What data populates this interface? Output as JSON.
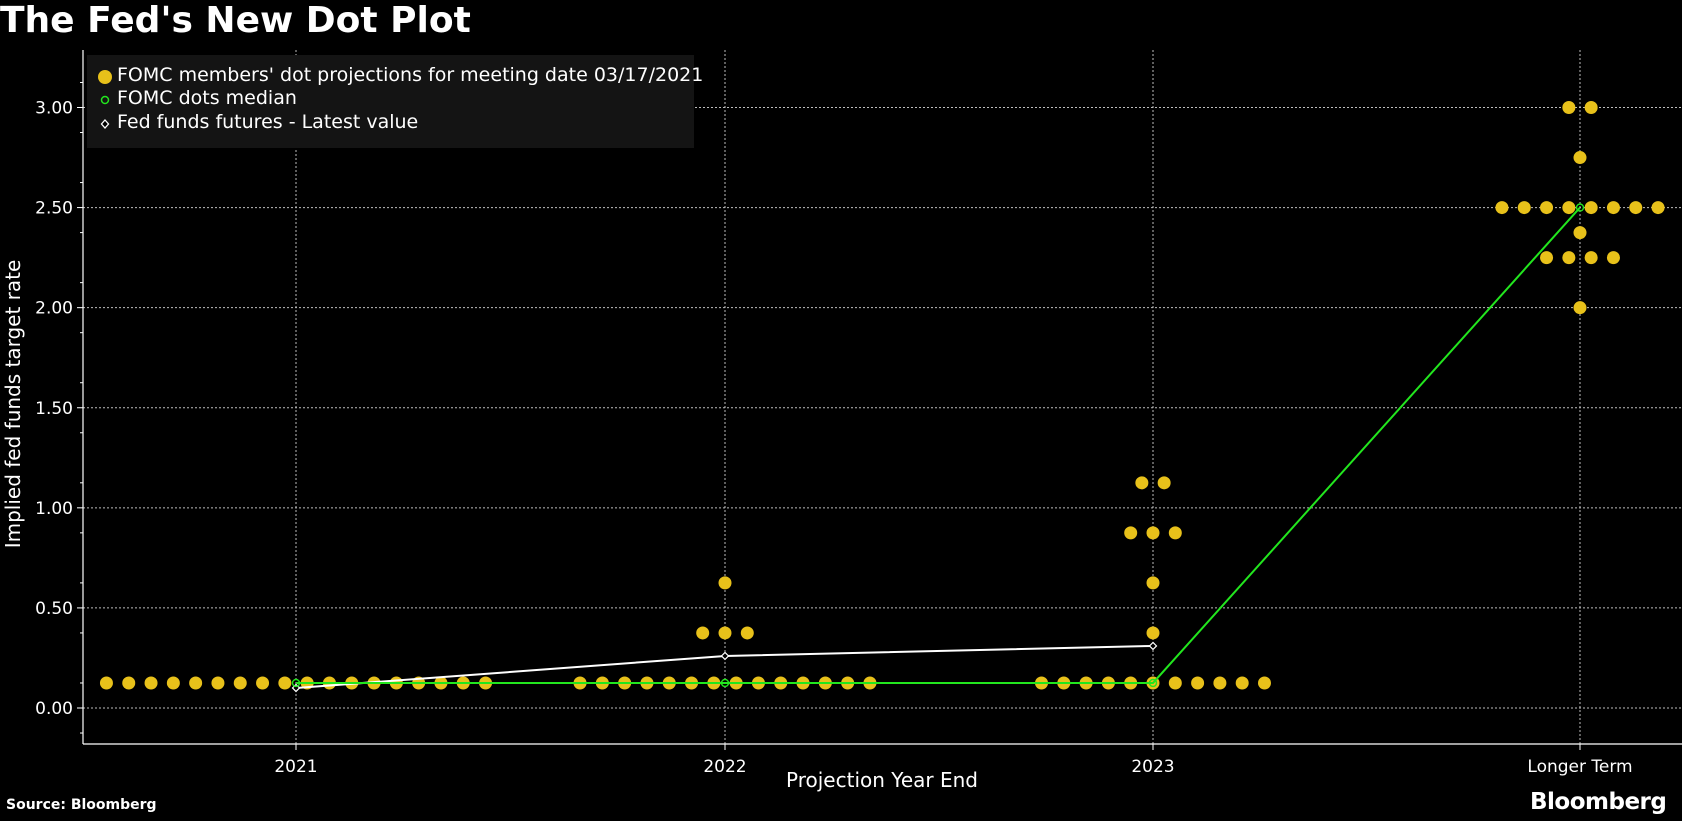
{
  "page": {
    "title": "The Fed's New Dot Plot",
    "source": "Source: Bloomberg",
    "brand": "Bloomberg"
  },
  "colors": {
    "background": "#000000",
    "dots": "#e8c11a",
    "median": "#22e61e",
    "futures": "#ffffff",
    "grid": "#bdbdbd"
  },
  "chart_data": {
    "type": "scatter",
    "xlabel": "Projection Year End",
    "ylabel": "Implied fed funds target rate",
    "ylim": [
      -0.2,
      3.25
    ],
    "y_ticks": [
      0.0,
      0.5,
      1.0,
      1.5,
      2.0,
      2.5,
      3.0
    ],
    "y_tick_labels": [
      "0.00",
      "0.50",
      "1.00",
      "1.50",
      "2.00",
      "2.50",
      "3.00"
    ],
    "categories": [
      "2021",
      "2022",
      "2023",
      "Longer Term"
    ],
    "grid": true,
    "legend_position": "top-left",
    "legend": [
      "FOMC members' dot projections for meeting date 03/17/2021",
      "FOMC dots median",
      "Fed funds futures - Latest value"
    ],
    "series": [
      {
        "name": "FOMC members' dot projections for meeting date 03/17/2021",
        "kind": "dots",
        "groups": [
          {
            "category": "2021",
            "rates": [
              {
                "rate": 0.125,
                "count": 18
              }
            ]
          },
          {
            "category": "2022",
            "rates": [
              {
                "rate": 0.125,
                "count": 14
              },
              {
                "rate": 0.375,
                "count": 3
              },
              {
                "rate": 0.625,
                "count": 1
              }
            ]
          },
          {
            "category": "2023",
            "rates": [
              {
                "rate": 0.125,
                "count": 11
              },
              {
                "rate": 0.375,
                "count": 1
              },
              {
                "rate": 0.625,
                "count": 1
              },
              {
                "rate": 0.875,
                "count": 3
              },
              {
                "rate": 1.125,
                "count": 2
              }
            ]
          },
          {
            "category": "Longer Term",
            "rates": [
              {
                "rate": 2.0,
                "count": 1
              },
              {
                "rate": 2.25,
                "count": 4
              },
              {
                "rate": 2.375,
                "count": 1
              },
              {
                "rate": 2.5,
                "count": 8
              },
              {
                "rate": 2.75,
                "count": 1
              },
              {
                "rate": 3.0,
                "count": 2
              }
            ]
          }
        ]
      },
      {
        "name": "FOMC dots median",
        "kind": "line",
        "points": [
          {
            "category": "2021",
            "value": 0.125
          },
          {
            "category": "2022",
            "value": 0.125
          },
          {
            "category": "2023",
            "value": 0.125
          },
          {
            "category": "Longer Term",
            "value": 2.5
          }
        ]
      },
      {
        "name": "Fed funds futures - Latest value",
        "kind": "line",
        "points": [
          {
            "category": "2021",
            "value": 0.1
          },
          {
            "category": "2022",
            "value": 0.26
          },
          {
            "category": "2023",
            "value": 0.31
          }
        ]
      }
    ]
  }
}
